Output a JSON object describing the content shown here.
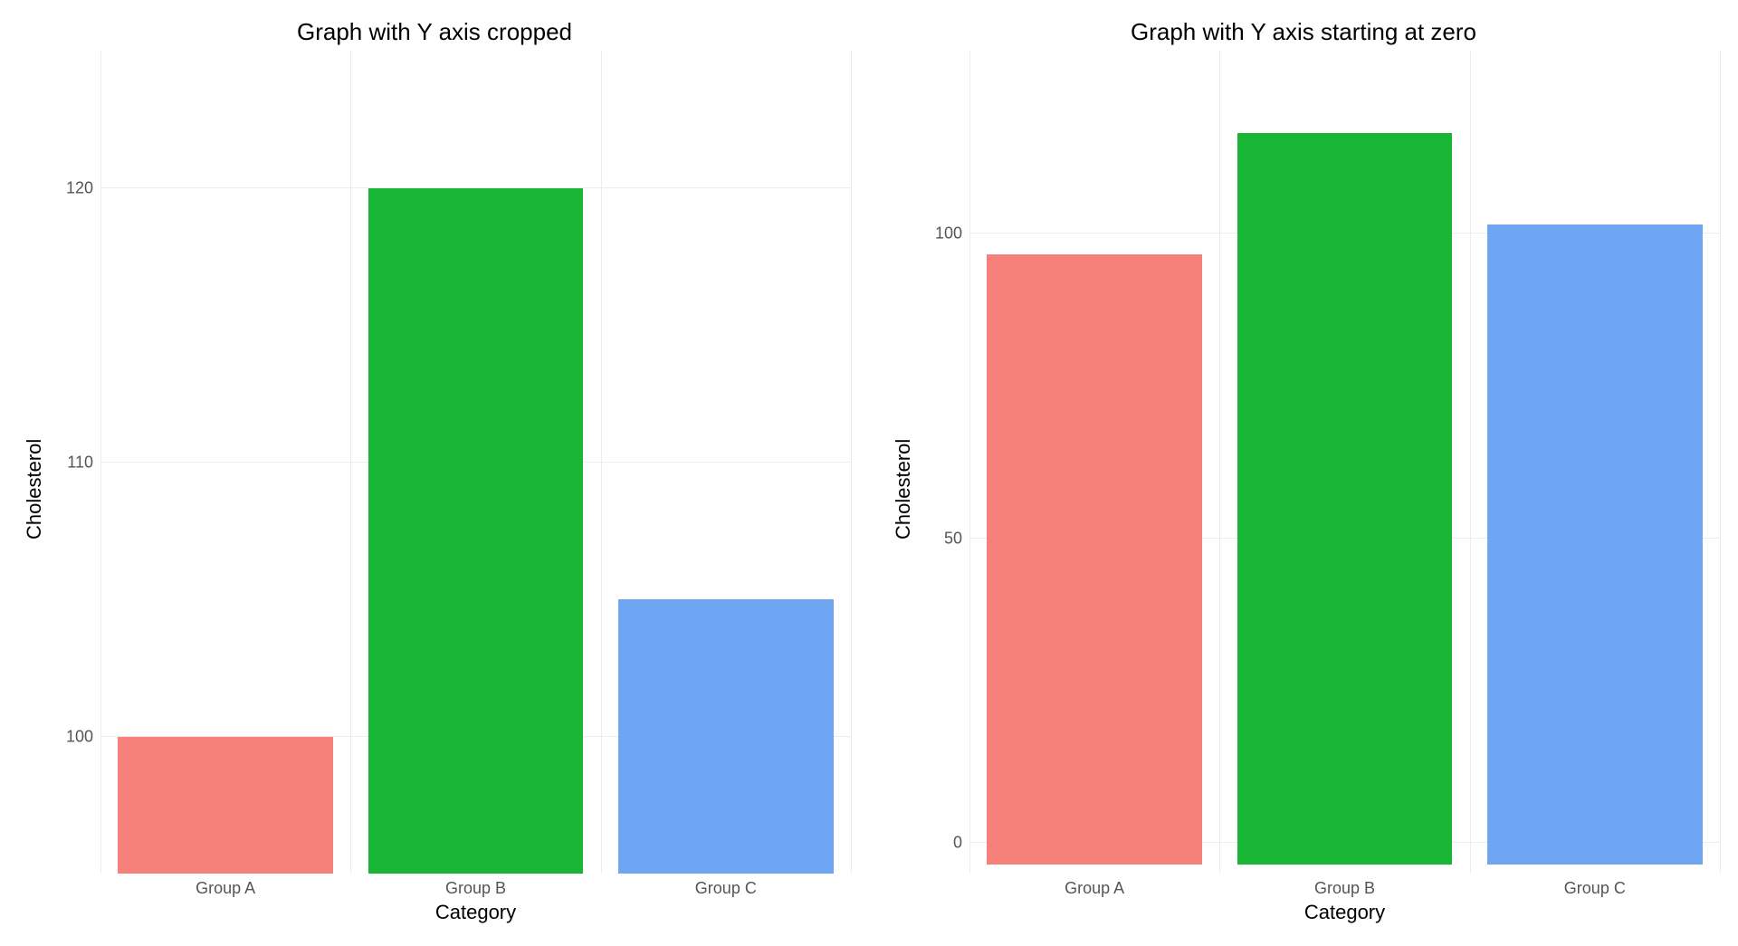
{
  "chart_left": {
    "type": "bar",
    "title": "Graph with Y axis cropped",
    "ylabel": "Cholesterol",
    "xlabel": "Category",
    "categories": [
      "Group A",
      "Group B",
      "Group C"
    ],
    "values": [
      100,
      120,
      105
    ],
    "bar_colors": [
      "#f6807a",
      "#18b634",
      "#6ea6f4"
    ],
    "ylim": [
      95,
      125
    ],
    "yticks": [
      100,
      110,
      120
    ],
    "title_fontsize": 26,
    "label_fontsize": 22,
    "tick_fontsize": 18,
    "background_color": "#ffffff",
    "grid_color": "#ececec",
    "bar_width": 0.86
  },
  "chart_right": {
    "type": "bar",
    "title": "Graph with Y axis starting at zero",
    "ylabel": "Cholesterol",
    "xlabel": "Category",
    "categories": [
      "Group A",
      "Group B",
      "Group C"
    ],
    "values": [
      100,
      120,
      105
    ],
    "bar_colors": [
      "#f6807a",
      "#18b634",
      "#6ea6f4"
    ],
    "ylim": [
      -5,
      130
    ],
    "yticks": [
      0,
      50,
      100
    ],
    "title_fontsize": 26,
    "label_fontsize": 22,
    "tick_fontsize": 18,
    "background_color": "#ffffff",
    "grid_color": "#ececec",
    "bar_width": 0.86
  }
}
